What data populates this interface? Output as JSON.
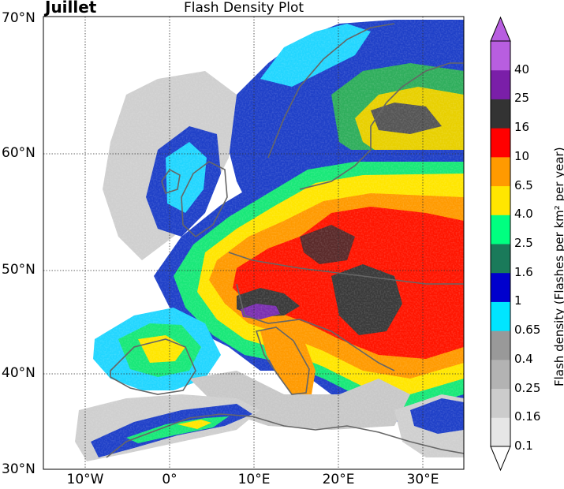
{
  "header": {
    "month": "Juillet",
    "title": "Flash Density Plot"
  },
  "axes": {
    "lat_labels": [
      "70°N",
      "60°N",
      "50°N",
      "40°N",
      "30°N"
    ],
    "lon_labels": [
      "10°W",
      "0°",
      "10°E",
      "20°E",
      "30°E"
    ],
    "lat_range": [
      30,
      70
    ],
    "lon_range": [
      -15,
      35
    ]
  },
  "colorbar": {
    "title": "Flash density (Flashes per km² per year)",
    "labels": [
      "0.1",
      "0.16",
      "0.25",
      "0.4",
      "0.65",
      "1",
      "1.6",
      "2.5",
      "4.0",
      "6.5",
      "10",
      "16",
      "25",
      "40"
    ],
    "colors": [
      "#e6e6e6",
      "#cccccc",
      "#b3b3b3",
      "#999999",
      "#00e5ff",
      "#0000cd",
      "#1a7a5a",
      "#00ff80",
      "#ffe600",
      "#ff9a00",
      "#ff0000",
      "#333333",
      "#7a1fa8",
      "#b85ee0"
    ]
  }
}
